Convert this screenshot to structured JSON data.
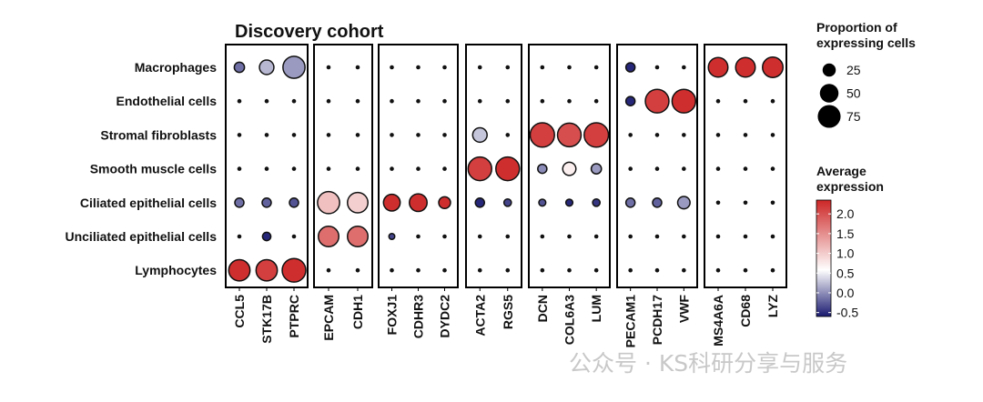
{
  "chart_data": {
    "type": "dotplot",
    "title": "Discovery cohort",
    "rows": [
      "Macrophages",
      "Endothelial cells",
      "Stromal fibroblasts",
      "Smooth muscle cells",
      "Ciliated epithelial cells",
      "Unciliated epithelial cells",
      "Lymphocytes"
    ],
    "panels": [
      {
        "genes": [
          "CCL5",
          "STK17B",
          "PTPRC"
        ]
      },
      {
        "genes": [
          "EPCAM",
          "CDH1"
        ]
      },
      {
        "genes": [
          "FOXJ1",
          "CDHR3",
          "DYDC2"
        ]
      },
      {
        "genes": [
          "ACTA2",
          "RGS5"
        ]
      },
      {
        "genes": [
          "DCN",
          "COL6A3",
          "LUM"
        ]
      },
      {
        "genes": [
          "PECAM1",
          "PCDH17",
          "VWF"
        ]
      },
      {
        "genes": [
          "MS4A6A",
          "CD68",
          "LYZ"
        ]
      }
    ],
    "points": [
      {
        "row": "Macrophages",
        "gene": "CCL5",
        "pct": 15,
        "avg": 0.0
      },
      {
        "row": "Macrophages",
        "gene": "STK17B",
        "pct": 30,
        "avg": 0.5
      },
      {
        "row": "Macrophages",
        "gene": "PTPRC",
        "pct": 70,
        "avg": 0.3
      },
      {
        "row": "Endothelial cells",
        "gene": "PECAM1",
        "pct": 12,
        "avg": -0.5
      },
      {
        "row": "Endothelial cells",
        "gene": "PCDH17",
        "pct": 80,
        "avg": 2.2
      },
      {
        "row": "Endothelial cells",
        "gene": "VWF",
        "pct": 80,
        "avg": 2.3
      },
      {
        "row": "Stromal fibroblasts",
        "gene": "ACTA2",
        "pct": 30,
        "avg": 0.6
      },
      {
        "row": "Stromal fibroblasts",
        "gene": "DCN",
        "pct": 85,
        "avg": 2.2
      },
      {
        "row": "Stromal fibroblasts",
        "gene": "COL6A3",
        "pct": 80,
        "avg": 2.1
      },
      {
        "row": "Stromal fibroblasts",
        "gene": "LUM",
        "pct": 85,
        "avg": 2.2
      },
      {
        "row": "Smooth muscle cells",
        "gene": "ACTA2",
        "pct": 80,
        "avg": 2.2
      },
      {
        "row": "Smooth muscle cells",
        "gene": "RGS5",
        "pct": 80,
        "avg": 2.3
      },
      {
        "row": "Smooth muscle cells",
        "gene": "DCN",
        "pct": 12,
        "avg": 0.2
      },
      {
        "row": "Smooth muscle cells",
        "gene": "COL6A3",
        "pct": 25,
        "avg": 1.1
      },
      {
        "row": "Smooth muscle cells",
        "gene": "LUM",
        "pct": 15,
        "avg": 0.3
      },
      {
        "row": "Ciliated epithelial cells",
        "gene": "CCL5",
        "pct": 12,
        "avg": 0.0
      },
      {
        "row": "Ciliated epithelial cells",
        "gene": "STK17B",
        "pct": 12,
        "avg": -0.1
      },
      {
        "row": "Ciliated epithelial cells",
        "gene": "PTPRC",
        "pct": 12,
        "avg": -0.2
      },
      {
        "row": "Ciliated epithelial cells",
        "gene": "EPCAM",
        "pct": 70,
        "avg": 1.4
      },
      {
        "row": "Ciliated epithelial cells",
        "gene": "CDH1",
        "pct": 60,
        "avg": 1.3
      },
      {
        "row": "Ciliated epithelial cells",
        "gene": "FOXJ1",
        "pct": 40,
        "avg": 2.3
      },
      {
        "row": "Ciliated epithelial cells",
        "gene": "CDHR3",
        "pct": 45,
        "avg": 2.3
      },
      {
        "row": "Ciliated epithelial cells",
        "gene": "DYDC2",
        "pct": 20,
        "avg": 2.3
      },
      {
        "row": "Ciliated epithelial cells",
        "gene": "ACTA2",
        "pct": 12,
        "avg": -0.5
      },
      {
        "row": "Ciliated epithelial cells",
        "gene": "RGS5",
        "pct": 8,
        "avg": -0.3
      },
      {
        "row": "Ciliated epithelial cells",
        "gene": "DCN",
        "pct": 7,
        "avg": -0.2
      },
      {
        "row": "Ciliated epithelial cells",
        "gene": "COL6A3",
        "pct": 7,
        "avg": -0.5
      },
      {
        "row": "Ciliated epithelial cells",
        "gene": "LUM",
        "pct": 8,
        "avg": -0.4
      },
      {
        "row": "Ciliated epithelial cells",
        "gene": "PECAM1",
        "pct": 12,
        "avg": 0.0
      },
      {
        "row": "Ciliated epithelial cells",
        "gene": "PCDH17",
        "pct": 12,
        "avg": -0.1
      },
      {
        "row": "Ciliated epithelial cells",
        "gene": "VWF",
        "pct": 22,
        "avg": 0.3
      },
      {
        "row": "Unciliated epithelial cells",
        "gene": "STK17B",
        "pct": 10,
        "avg": -0.5
      },
      {
        "row": "Unciliated epithelial cells",
        "gene": "EPCAM",
        "pct": 60,
        "avg": 1.9
      },
      {
        "row": "Unciliated epithelial cells",
        "gene": "CDH1",
        "pct": 60,
        "avg": 1.9
      },
      {
        "row": "Unciliated epithelial cells",
        "gene": "FOXJ1",
        "pct": 5,
        "avg": -0.3
      },
      {
        "row": "Lymphocytes",
        "gene": "CCL5",
        "pct": 65,
        "avg": 2.3
      },
      {
        "row": "Lymphocytes",
        "gene": "STK17B",
        "pct": 65,
        "avg": 2.2
      },
      {
        "row": "Lymphocytes",
        "gene": "PTPRC",
        "pct": 80,
        "avg": 2.3
      },
      {
        "row": "Macrophages",
        "gene": "PECAM1",
        "pct": 12,
        "avg": -0.5
      },
      {
        "row": "Macrophages",
        "gene": "MS4A6A",
        "pct": 55,
        "avg": 2.3
      },
      {
        "row": "Macrophages",
        "gene": "CD68",
        "pct": 55,
        "avg": 2.3
      },
      {
        "row": "Macrophages",
        "gene": "LYZ",
        "pct": 60,
        "avg": 2.3
      }
    ],
    "default_point": {
      "pct": 4,
      "avg": -0.5
    },
    "size_legend": {
      "title_line1": "Proportion of",
      "title_line2": "expressing cells",
      "values": [
        25,
        50,
        75
      ]
    },
    "color_legend": {
      "title_line1": "Average",
      "title_line2": "expression",
      "ticks": [
        2.0,
        1.5,
        1.0,
        0.5,
        0.0,
        -0.5
      ],
      "tick_labels": [
        "2.0",
        "1.5",
        "1.0",
        "0.5",
        "0.0",
        "-0.5"
      ],
      "range": [
        -0.6,
        2.35
      ]
    },
    "colors": {
      "low": "#191970",
      "mid": "#ffffff",
      "high": "#cd2626",
      "default_dot": "#111111"
    }
  },
  "watermark": "公众号 · KS科研分享与服务"
}
